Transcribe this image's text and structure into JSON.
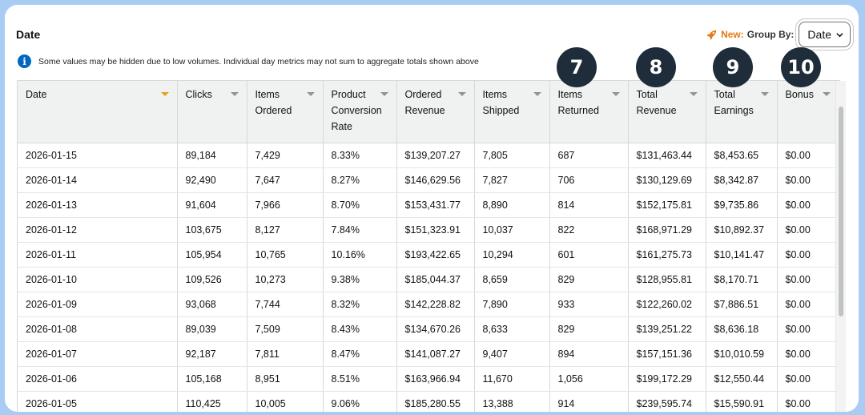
{
  "header": {
    "title": "Date",
    "new_label": "New:",
    "group_by_label": "Group By:",
    "group_by_value": "Date"
  },
  "notice": "Some values may be hidden due to low volumes. Individual day metrics may not sum to aggregate totals shown above",
  "markers": [
    "7",
    "8",
    "9",
    "10"
  ],
  "table": {
    "columns": [
      [
        "Date"
      ],
      [
        "Clicks"
      ],
      [
        "Items",
        "Ordered"
      ],
      [
        "Product",
        "Conversion",
        "Rate"
      ],
      [
        "Ordered",
        "Revenue"
      ],
      [
        "Items",
        "Shipped"
      ],
      [
        "Items",
        "Returned"
      ],
      [
        "Total",
        "Revenue"
      ],
      [
        "Total",
        "Earnings"
      ],
      [
        "Bonus"
      ]
    ],
    "rows": [
      [
        "2026-01-15",
        "89,184",
        "7,429",
        "8.33%",
        "$139,207.27",
        "7,805",
        "687",
        "$131,463.44",
        "$8,453.65",
        "$0.00"
      ],
      [
        "2026-01-14",
        "92,490",
        "7,647",
        "8.27%",
        "$146,629.56",
        "7,827",
        "706",
        "$130,129.69",
        "$8,342.87",
        "$0.00"
      ],
      [
        "2026-01-13",
        "91,604",
        "7,966",
        "8.70%",
        "$153,431.77",
        "8,890",
        "814",
        "$152,175.81",
        "$9,735.86",
        "$0.00"
      ],
      [
        "2026-01-12",
        "103,675",
        "8,127",
        "7.84%",
        "$151,323.91",
        "10,037",
        "822",
        "$168,971.29",
        "$10,892.37",
        "$0.00"
      ],
      [
        "2026-01-11",
        "105,954",
        "10,765",
        "10.16%",
        "$193,422.65",
        "10,294",
        "601",
        "$161,275.73",
        "$10,141.47",
        "$0.00"
      ],
      [
        "2026-01-10",
        "109,526",
        "10,273",
        "9.38%",
        "$185,044.37",
        "8,659",
        "829",
        "$128,955.81",
        "$8,170.71",
        "$0.00"
      ],
      [
        "2026-01-09",
        "93,068",
        "7,744",
        "8.32%",
        "$142,228.82",
        "7,890",
        "933",
        "$122,260.02",
        "$7,886.51",
        "$0.00"
      ],
      [
        "2026-01-08",
        "89,039",
        "7,509",
        "8.43%",
        "$134,670.26",
        "8,633",
        "829",
        "$139,251.22",
        "$8,636.18",
        "$0.00"
      ],
      [
        "2026-01-07",
        "92,187",
        "7,811",
        "8.47%",
        "$141,087.27",
        "9,407",
        "894",
        "$157,151.36",
        "$10,010.59",
        "$0.00"
      ],
      [
        "2026-01-06",
        "105,168",
        "8,951",
        "8.51%",
        "$163,966.94",
        "11,670",
        "1,056",
        "$199,172.29",
        "$12,550.44",
        "$0.00"
      ],
      [
        "2026-01-05",
        "110,425",
        "10,005",
        "9.06%",
        "$185,280.55",
        "13,388",
        "914",
        "$239,595.74",
        "$15,590.91",
        "$0.00"
      ]
    ]
  },
  "colors": {
    "background": "#a9ccf5",
    "accent_orange": "#e47911",
    "sort_active": "#e3a21a",
    "header_bg": "#f0f2f2",
    "marker_bg": "#1f2d3a",
    "info_blue": "#0066c0"
  },
  "icons": {
    "rocket": "rocket-icon",
    "info": "info-icon",
    "chevron": "chevron-down-icon",
    "sort": "sort-arrow-icon"
  }
}
